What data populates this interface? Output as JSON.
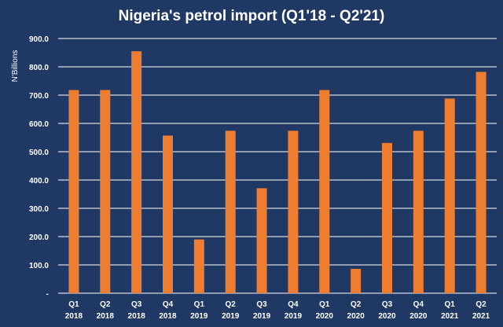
{
  "chart_data": {
    "type": "bar",
    "title": "Nigeria's petrol import (Q1'18 - Q2'21)",
    "xlabel": "",
    "ylabel": "N'Billions",
    "ylim": [
      0,
      900
    ],
    "grid": true,
    "bar_color": "#ed7d31",
    "background": "#1f3864",
    "text_color": "#ffffff",
    "y_ticks": [
      {
        "value": 0,
        "label": "-"
      },
      {
        "value": 100,
        "label": "100.0"
      },
      {
        "value": 200,
        "label": "200.0"
      },
      {
        "value": 300,
        "label": "300.0"
      },
      {
        "value": 400,
        "label": "400.0"
      },
      {
        "value": 500,
        "label": "500.0"
      },
      {
        "value": 600,
        "label": "600.0"
      },
      {
        "value": 700,
        "label": "700.0"
      },
      {
        "value": 800,
        "label": "800.0"
      },
      {
        "value": 900,
        "label": "900.0"
      }
    ],
    "categories": [
      {
        "quarter": "Q1",
        "year": "2018"
      },
      {
        "quarter": "Q2",
        "year": "2018"
      },
      {
        "quarter": "Q3",
        "year": "2018"
      },
      {
        "quarter": "Q4",
        "year": "2018"
      },
      {
        "quarter": "Q1",
        "year": "2019"
      },
      {
        "quarter": "Q2",
        "year": "2019"
      },
      {
        "quarter": "Q3",
        "year": "2019"
      },
      {
        "quarter": "Q4",
        "year": "2019"
      },
      {
        "quarter": "Q1",
        "year": "2020"
      },
      {
        "quarter": "Q2",
        "year": "2020"
      },
      {
        "quarter": "Q3",
        "year": "2020"
      },
      {
        "quarter": "Q4",
        "year": "2020"
      },
      {
        "quarter": "Q1",
        "year": "2021"
      },
      {
        "quarter": "Q2",
        "year": "2021"
      }
    ],
    "values": [
      718,
      718,
      855,
      557,
      190,
      574,
      371,
      574,
      718,
      86,
      531,
      574,
      688,
      782
    ]
  }
}
